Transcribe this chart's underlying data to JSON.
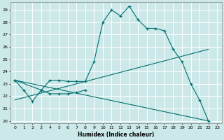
{
  "title": "",
  "xlabel": "Humidex (Indice chaleur)",
  "background_color": "#cce8e8",
  "grid_color": "#ffffff",
  "line_color": "#007070",
  "xlim": [
    -0.5,
    23.5
  ],
  "ylim": [
    19.8,
    29.6
  ],
  "xticks": [
    0,
    1,
    2,
    3,
    4,
    5,
    6,
    7,
    8,
    9,
    10,
    11,
    12,
    13,
    14,
    15,
    16,
    17,
    18,
    19,
    20,
    21,
    22,
    23
  ],
  "yticks": [
    20,
    21,
    22,
    23,
    24,
    25,
    26,
    27,
    28,
    29
  ],
  "series": [
    {
      "x": [
        0,
        1,
        2,
        3,
        4,
        5,
        6,
        7,
        8,
        9,
        10,
        11,
        12,
        13,
        14,
        15,
        16,
        17,
        18,
        19,
        20,
        21,
        22
      ],
      "y": [
        23.3,
        22.5,
        21.6,
        22.5,
        23.3,
        23.3,
        23.2,
        23.2,
        23.2,
        24.8,
        28.0,
        29.0,
        28.5,
        29.3,
        28.2,
        27.5,
        27.5,
        27.3,
        25.8,
        24.8,
        23.0,
        21.7,
        20.0
      ],
      "marker": true
    },
    {
      "x": [
        0,
        3,
        4,
        5,
        6,
        7,
        8
      ],
      "y": [
        23.3,
        22.5,
        22.2,
        22.2,
        22.2,
        22.3,
        22.5
      ],
      "marker": true
    },
    {
      "x": [
        0,
        22
      ],
      "y": [
        21.7,
        25.8
      ],
      "marker": false
    },
    {
      "x": [
        0,
        22
      ],
      "y": [
        23.3,
        20.0
      ],
      "marker": false
    }
  ]
}
